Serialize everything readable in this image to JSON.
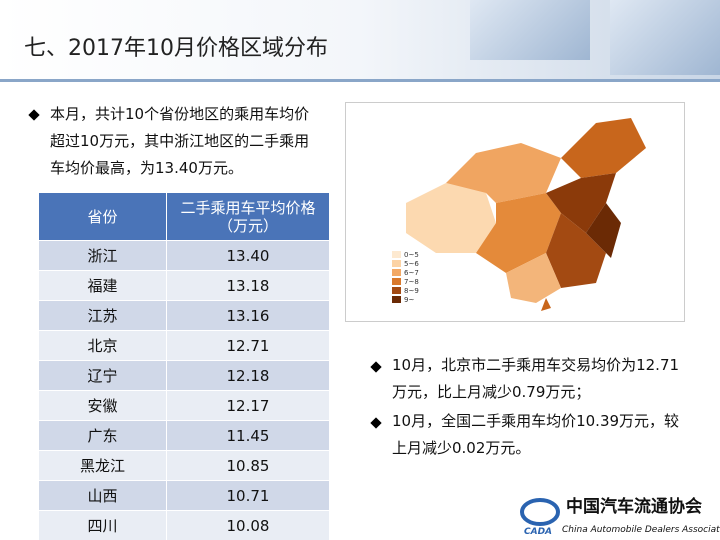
{
  "header": {
    "title": "七、2017年10月价格区域分布"
  },
  "intro": "本月，共计10个省份地区的乘用车均价超过10万元，其中浙江地区的二手乘用车均价最高，为13.40万元。",
  "table": {
    "columns": [
      "省份",
      "二手乘用车平均价格（万元）"
    ],
    "rows": [
      [
        "浙江",
        "13.40"
      ],
      [
        "福建",
        "13.18"
      ],
      [
        "江苏",
        "13.16"
      ],
      [
        "北京",
        "12.71"
      ],
      [
        "辽宁",
        "12.18"
      ],
      [
        "安徽",
        "12.17"
      ],
      [
        "广东",
        "11.45"
      ],
      [
        "黑龙江",
        "10.85"
      ],
      [
        "山西",
        "10.71"
      ],
      [
        "四川",
        "10.08"
      ]
    ]
  },
  "map": {
    "legend": [
      "0~5",
      "5~6",
      "6~7",
      "7~8",
      "8~9",
      "9~"
    ]
  },
  "notes": [
    "10月，北京市二手乘用车交易均价为12.71万元，比上月减少0.79万元；",
    "10月，全国二手乘用车均价10.39万元，较上月减少0.02万元。"
  ],
  "logo": {
    "abbr": "CADA",
    "name": "中国汽车流通协会",
    "english": "China Automobile Dealers Association"
  }
}
